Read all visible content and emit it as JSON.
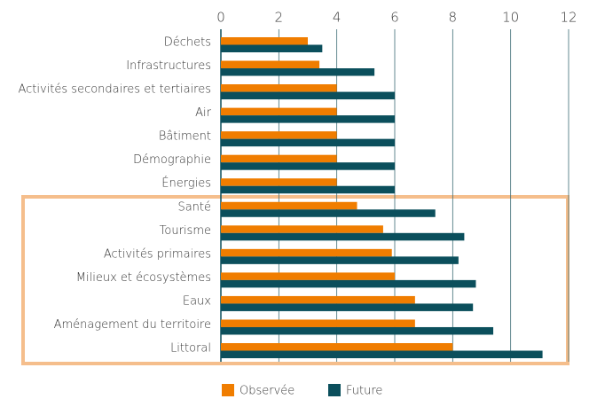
{
  "chart_data": {
    "type": "bar",
    "orientation": "horizontal",
    "categories": [
      "Déchets",
      "Infrastructures",
      "Activités secondaires et tertiaires",
      "Air",
      "Bâtiment",
      "Démographie",
      "Énergies",
      "Santé",
      "Tourisme",
      "Activités primaires",
      "Milieux et écosystèmes",
      "Eaux",
      "Aménagement du territoire",
      "Littoral"
    ],
    "series": [
      {
        "name": "Observée",
        "color": "#f07d00",
        "values": [
          3,
          3.4,
          4,
          4,
          4,
          4,
          4,
          4.7,
          5.6,
          5.9,
          6,
          6.7,
          6.7,
          8
        ]
      },
      {
        "name": "Future",
        "color": "#0b4f5c",
        "values": [
          3.5,
          5.3,
          6,
          6,
          6,
          6,
          6,
          7.4,
          8.4,
          8.2,
          8.8,
          8.7,
          9.4,
          11.1
        ]
      }
    ],
    "xlim": [
      0,
      12
    ],
    "xticks": [
      0,
      2,
      4,
      6,
      8,
      10,
      12
    ],
    "grid": true,
    "legend": "bottom"
  }
}
